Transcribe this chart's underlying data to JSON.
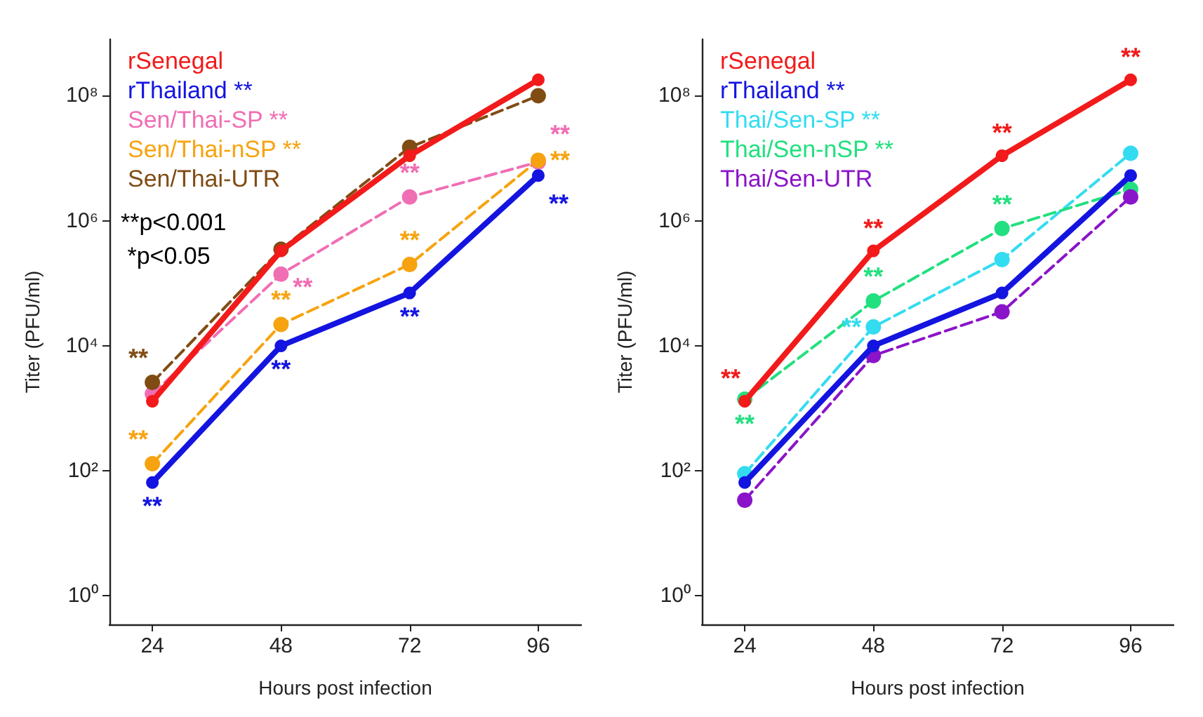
{
  "chart_data": [
    {
      "type": "line",
      "xlabel": "Hours post infection",
      "ylabel": "Titer (PFU/ml)",
      "x": [
        24,
        48,
        72,
        96
      ],
      "xlim": [
        16,
        104
      ],
      "xticks": [
        24,
        48,
        72,
        96
      ],
      "log": true,
      "ylim": [
        0.35,
        800000000
      ],
      "yticks": [
        {
          "value": 1,
          "label": "10⁰"
        },
        {
          "value": 100,
          "label": "10²"
        },
        {
          "value": 10000,
          "label": "10⁴"
        },
        {
          "value": 1000000,
          "label": "10⁶"
        },
        {
          "value": 100000000,
          "label": "10⁸"
        }
      ],
      "grid": false,
      "legend": "top left",
      "marker": "circle",
      "annotations": [
        "**p<0.001",
        " *p<0.05"
      ],
      "series": [
        {
          "name": "rSenegal",
          "color": "#f21a1a",
          "line_style": "solid",
          "values": [
            1300,
            330000,
            11000000,
            180000000
          ]
        },
        {
          "name": "rThailand **",
          "color": "#1414e0",
          "line_style": "solid",
          "values": [
            65,
            10000,
            70000,
            5300000
          ],
          "value_labels": [
            "**",
            "**",
            "**",
            "**"
          ]
        },
        {
          "name": "Sen/Thai-SP **",
          "color": "#f06eb4",
          "line_style": "dashed",
          "values": [
            1700,
            140000,
            2400000,
            8700000
          ],
          "value_labels": [
            null,
            "**",
            "**",
            "**"
          ]
        },
        {
          "name": "Sen/Thai-nSP **",
          "color": "#f7a30f",
          "line_style": "dashed",
          "values": [
            130,
            22000,
            200000,
            9300000
          ],
          "value_labels": [
            "**",
            "**",
            "**",
            "**"
          ]
        },
        {
          "name": "Sen/Thai-UTR",
          "color": "#804c14",
          "line_style": "dashed",
          "values": [
            2600,
            350000,
            15000000,
            100000000
          ],
          "value_labels": [
            "**",
            null,
            null,
            null
          ]
        }
      ]
    },
    {
      "type": "line",
      "xlabel": "Hours post infection",
      "ylabel": "Titer (PFU/ml)",
      "x": [
        24,
        48,
        72,
        96
      ],
      "xlim": [
        16,
        104
      ],
      "xticks": [
        24,
        48,
        72,
        96
      ],
      "log": true,
      "ylim": [
        0.35,
        800000000
      ],
      "yticks": [
        {
          "value": 1,
          "label": "10⁰"
        },
        {
          "value": 100,
          "label": "10²"
        },
        {
          "value": 10000,
          "label": "10⁴"
        },
        {
          "value": 1000000,
          "label": "10⁶"
        },
        {
          "value": 100000000,
          "label": "10⁸"
        }
      ],
      "grid": false,
      "legend": "top left",
      "marker": "circle",
      "series": [
        {
          "name": "rSenegal",
          "color": "#f21a1a",
          "line_style": "solid",
          "values": [
            1300,
            330000,
            11000000,
            180000000
          ],
          "value_labels": [
            "**",
            "**",
            "**",
            "**"
          ]
        },
        {
          "name": "rThailand **",
          "color": "#1414e0",
          "line_style": "solid",
          "values": [
            65,
            10000,
            70000,
            5300000
          ]
        },
        {
          "name": "Thai/Sen-SP **",
          "color": "#33dcf0",
          "line_style": "dashed",
          "values": [
            90,
            20000,
            240000,
            12000000
          ],
          "value_labels": [
            null,
            "**",
            null,
            null
          ]
        },
        {
          "name": "Thai/Sen-nSP **",
          "color": "#22e07f",
          "line_style": "dashed",
          "values": [
            1400,
            52000,
            750000,
            3200000
          ],
          "value_labels": [
            "**",
            "**",
            "**",
            null
          ]
        },
        {
          "name": "Thai/Sen-UTR",
          "color": "#8a14c9",
          "line_style": "dashed",
          "values": [
            34,
            7000,
            35000,
            2400000
          ]
        }
      ]
    }
  ]
}
